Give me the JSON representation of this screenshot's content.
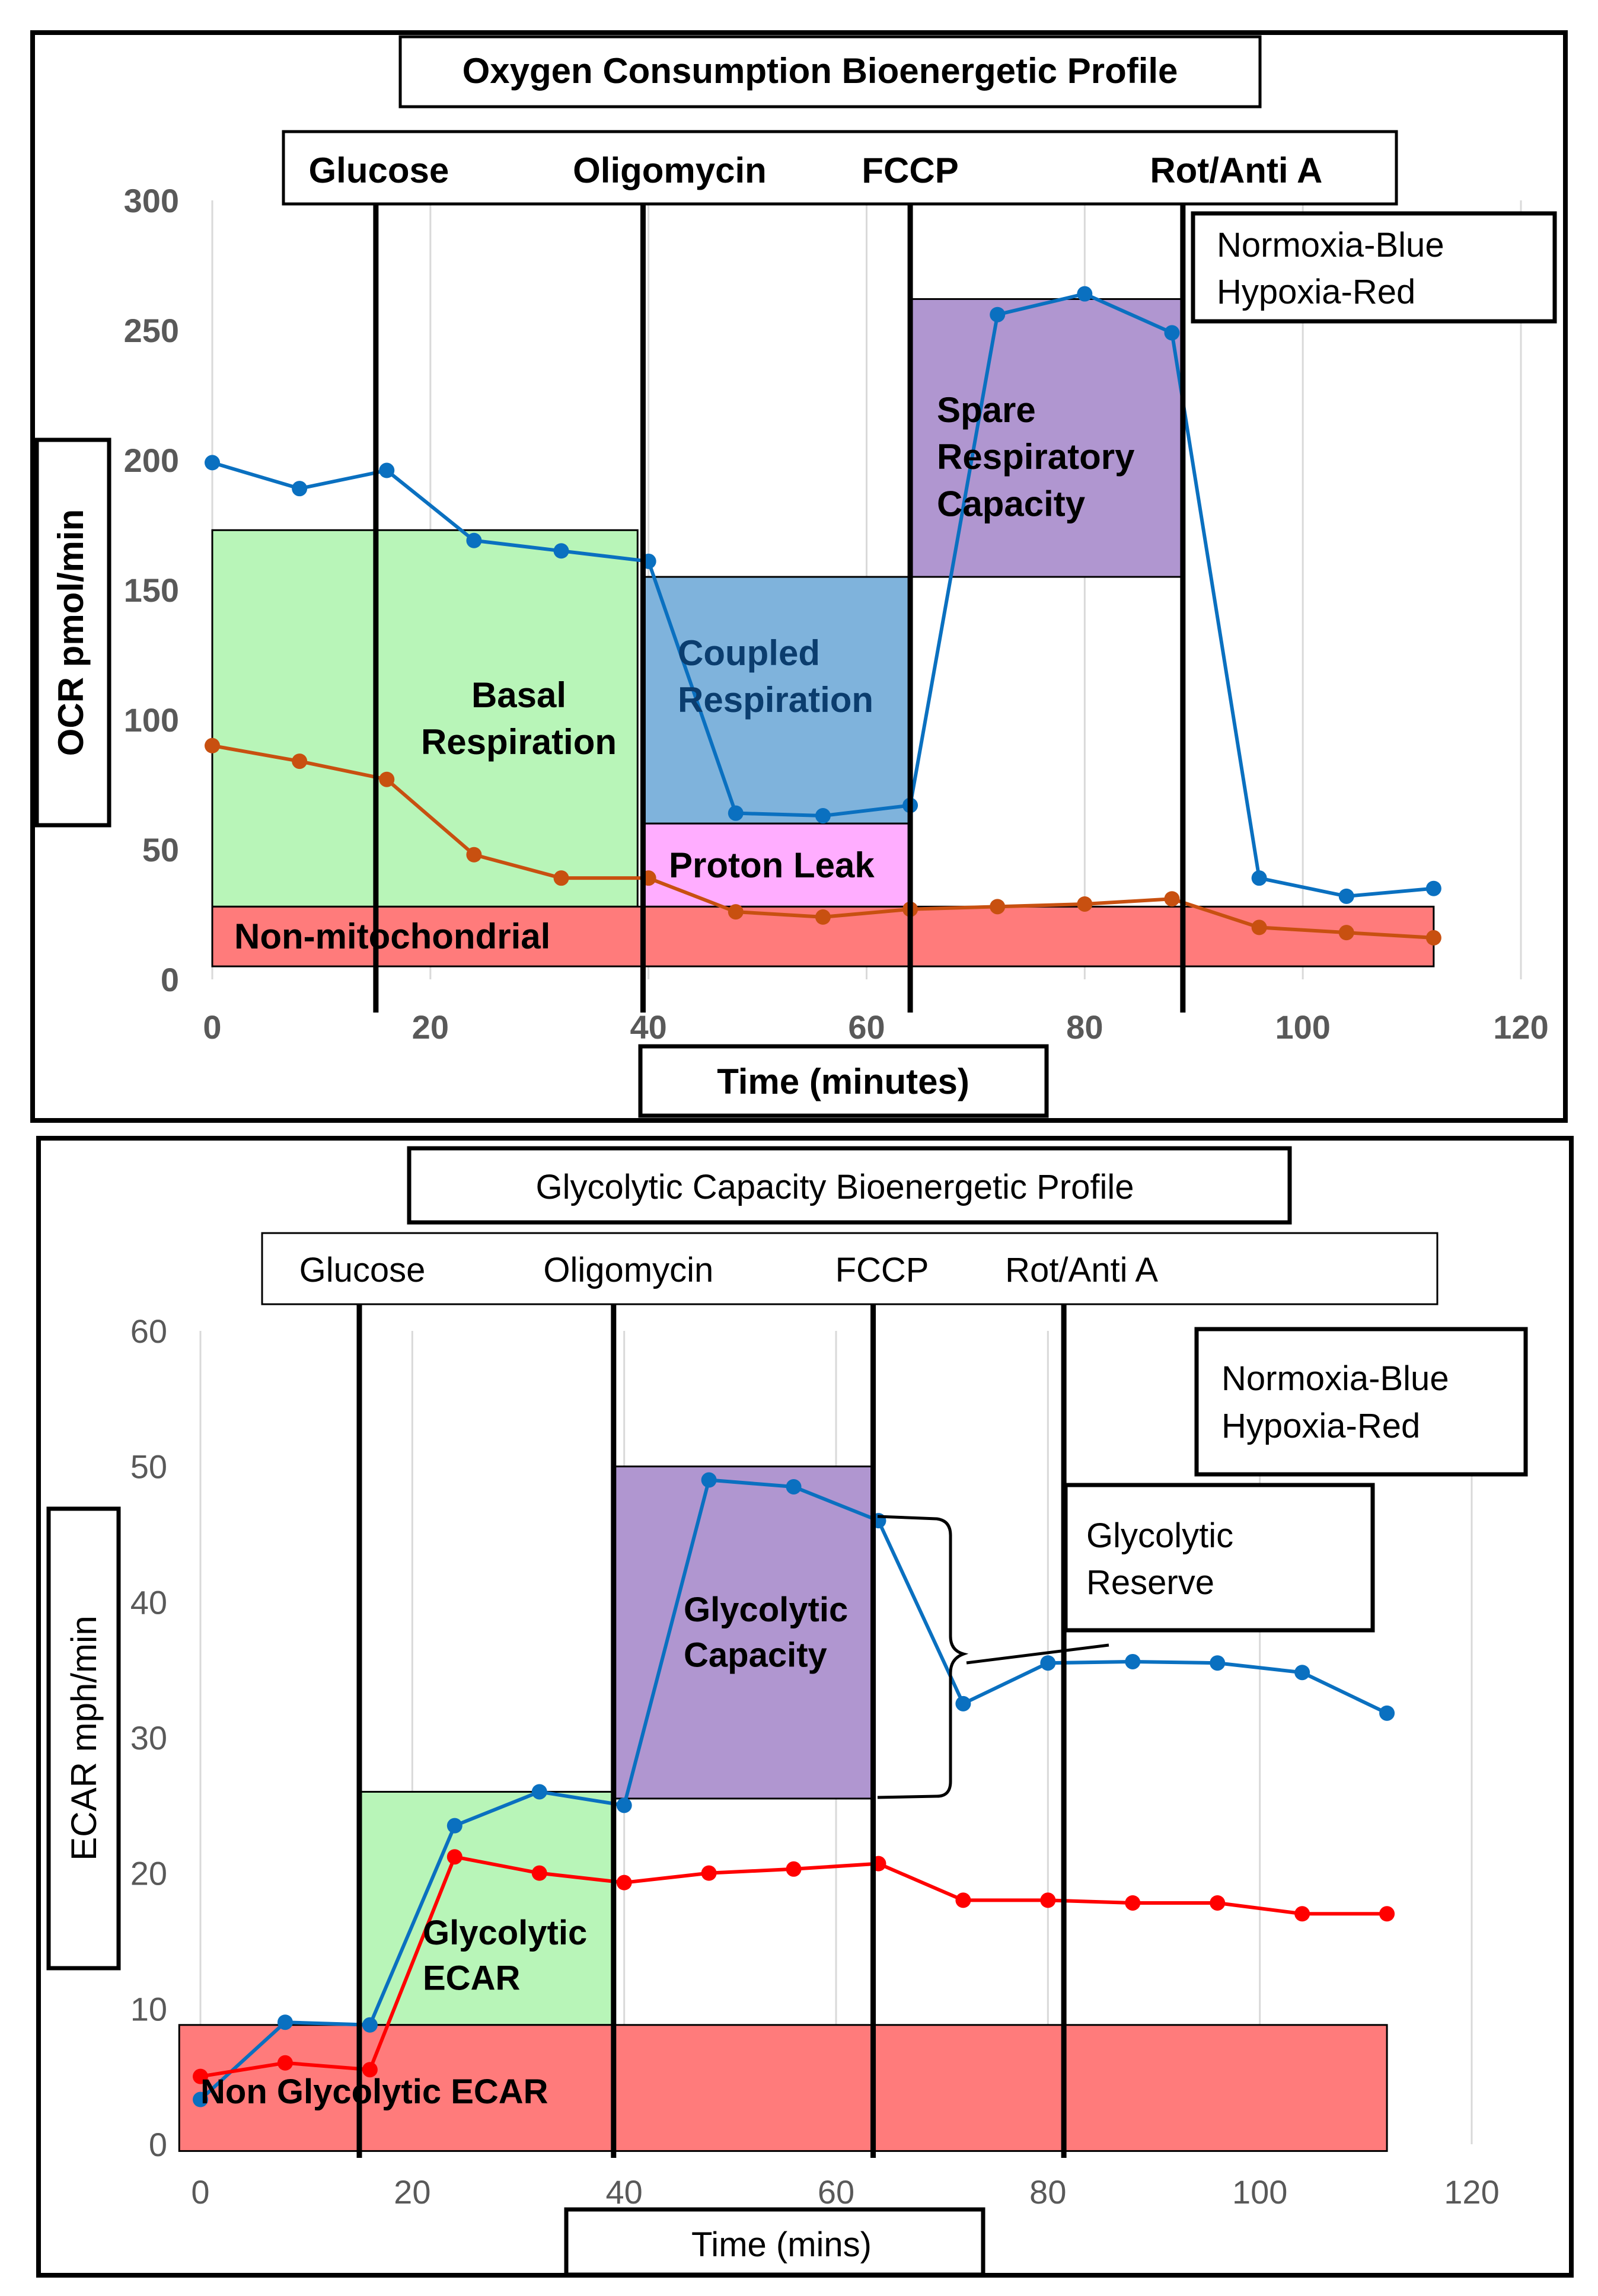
{
  "chart_data": [
    {
      "type": "line",
      "title": "Oxygen Consumption Bioenergetic Profile",
      "xlabel": "Time (minutes)",
      "ylabel": "OCR pmol/min",
      "xlim": [
        0,
        120
      ],
      "ylim": [
        0,
        300
      ],
      "xticks": [
        "0",
        "20",
        "40",
        "60",
        "80",
        "100",
        "120"
      ],
      "yticks": [
        "0",
        "50",
        "100",
        "150",
        "200",
        "250",
        "300"
      ],
      "grid": "vertical",
      "legend": [
        "Normoxia-Blue",
        "Hypoxia-Red"
      ],
      "injections": [
        {
          "label": "Glucose",
          "x": 15
        },
        {
          "label": "Oligomycin",
          "x": 39.5
        },
        {
          "label": "FCCP",
          "x": 64
        },
        {
          "label": "Rot/Anti A",
          "x": 89
        }
      ],
      "regions": [
        {
          "label": "Basal\nRespiration",
          "x0": 0,
          "x1": 39,
          "y0": 28,
          "y1": 173,
          "color": "#b8f5b8"
        },
        {
          "label": "Coupled\nRespiration",
          "x0": 39.5,
          "x1": 64,
          "y0": 60,
          "y1": 155,
          "color": "#7fb3dc"
        },
        {
          "label": "Proton Leak",
          "x0": 39.5,
          "x1": 64,
          "y0": 28,
          "y1": 60,
          "color": "#ffadff"
        },
        {
          "label": "Spare\nRespiratory\nCapacity",
          "x0": 64,
          "x1": 89,
          "y0": 155,
          "y1": 262,
          "color": "#b096d0"
        },
        {
          "label": "Non-mitochondrial",
          "x0": 0,
          "x1": 112,
          "y0": 5,
          "y1": 28,
          "color": "#ff7b7b"
        }
      ],
      "series": [
        {
          "name": "Normoxia",
          "color": "#0a70c0",
          "x": [
            0,
            8,
            16,
            24,
            32,
            40,
            48,
            56,
            64,
            72,
            80,
            88,
            96,
            104,
            112
          ],
          "y": [
            199,
            189,
            196,
            169,
            165,
            161,
            64,
            63,
            67,
            256,
            264,
            249,
            39,
            32,
            35
          ]
        },
        {
          "name": "Hypoxia",
          "color": "#c85010",
          "x": [
            0,
            8,
            16,
            24,
            32,
            40,
            48,
            56,
            64,
            72,
            80,
            88,
            96,
            104,
            112
          ],
          "y": [
            90,
            84,
            77,
            48,
            39,
            39,
            26,
            24,
            27,
            28,
            29,
            31,
            20,
            18,
            16
          ]
        }
      ]
    },
    {
      "type": "line",
      "title": "Glycolytic Capacity Bioenergetic  Profile",
      "xlabel": "Time (mins)",
      "ylabel": "ECAR  mph/min",
      "xlim": [
        0,
        120
      ],
      "ylim": [
        0,
        60
      ],
      "xticks": [
        "0",
        "20",
        "40",
        "60",
        "80",
        "100",
        "120"
      ],
      "yticks": [
        "0",
        "10",
        "20",
        "30",
        "40",
        "50",
        "60"
      ],
      "grid": "vertical",
      "legend": [
        "Normoxia-Blue",
        "Hypoxia-Red"
      ],
      "injections": [
        {
          "label": "Glucose",
          "x": 15
        },
        {
          "label": "Oligomycin",
          "x": 39
        },
        {
          "label": "FCCP",
          "x": 63.5
        },
        {
          "label": "Rot/Anti A",
          "x": 81.5
        }
      ],
      "regions": [
        {
          "label": "Glycolytic\nECAR",
          "x0": 15,
          "x1": 39,
          "y0": 8.8,
          "y1": 26,
          "color": "#b8f5b8"
        },
        {
          "label": "Glycolytic\nCapacity",
          "x0": 39,
          "x1": 63.5,
          "y0": 25.5,
          "y1": 50,
          "color": "#b096d0"
        },
        {
          "label": "Non Glycolytic ECAR",
          "x0": -2,
          "x1": 112,
          "y0": -0.5,
          "y1": 8.8,
          "color": "#ff7b7b"
        }
      ],
      "annotation": "Glycolytic\nReserve",
      "series": [
        {
          "name": "Normoxia",
          "color": "#0a70c0",
          "x": [
            0,
            8,
            16,
            24,
            32,
            40,
            48,
            56,
            64,
            72,
            80,
            88,
            96,
            104,
            112
          ],
          "y": [
            3.3,
            9,
            8.8,
            23.5,
            26,
            25,
            49,
            48.5,
            46,
            32.5,
            35.5,
            35.6,
            35.5,
            34.8,
            31.8
          ]
        },
        {
          "name": "Hypoxia",
          "color": "#ff0000",
          "x": [
            0,
            8,
            16,
            24,
            32,
            40,
            48,
            56,
            64,
            72,
            80,
            88,
            96,
            104,
            112
          ],
          "y": [
            5,
            6,
            5.5,
            21.2,
            20,
            19.3,
            20,
            20.3,
            20.7,
            18,
            18,
            17.8,
            17.8,
            17,
            17
          ]
        }
      ]
    }
  ]
}
